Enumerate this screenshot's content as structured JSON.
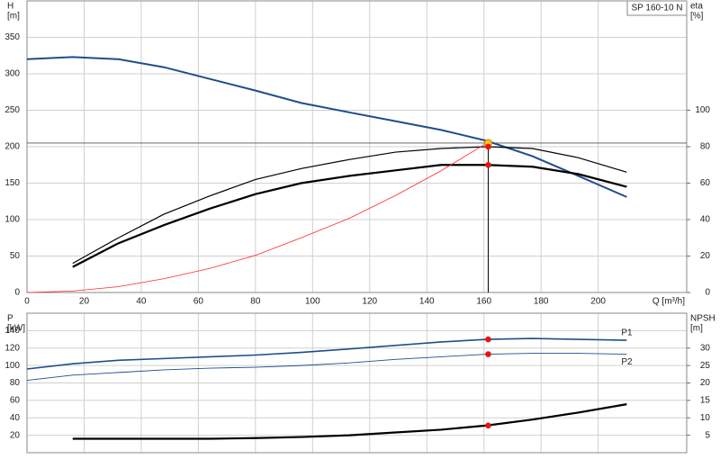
{
  "chart_data": [
    {
      "type": "line",
      "label": "SP 160-10 N",
      "ylabel": "H",
      "yunit": "[m]",
      "y2label": "eta",
      "y2unit": "[%]",
      "xlabel": "Q [m³/h]",
      "x": [
        0,
        16,
        32,
        48,
        64,
        80,
        96,
        113,
        129,
        145,
        161,
        177,
        193,
        210
      ],
      "xlim": [
        0,
        231
      ],
      "xticks": [
        0,
        20,
        40,
        60,
        80,
        100,
        120,
        140,
        160,
        180,
        200
      ],
      "ylim": [
        0,
        400
      ],
      "yticks": [
        0,
        50,
        100,
        150,
        200,
        250,
        300,
        350
      ],
      "y2lim": [
        0,
        160
      ],
      "y2ticks": [
        0,
        20,
        40,
        60,
        80,
        100
      ],
      "grid": true,
      "series": [
        {
          "color": "#1f4e8c",
          "width": 2,
          "axis": "y",
          "values": [
            320,
            323,
            320,
            309,
            293,
            277,
            260,
            247,
            235,
            223,
            208,
            187,
            160,
            131
          ]
        },
        {
          "color": "#000000",
          "width": 1.2,
          "axis": "y2",
          "values": [
            null,
            16,
            30,
            43,
            53,
            62,
            68,
            73,
            77,
            79,
            80,
            79,
            74,
            66
          ]
        },
        {
          "color": "#000000",
          "width": 2.2,
          "axis": "y2",
          "values": [
            null,
            14,
            27,
            37,
            46,
            54,
            60,
            64,
            67,
            70,
            70,
            69,
            65,
            58
          ]
        },
        {
          "color": "#ff2a2a",
          "width": 0.8,
          "axis": "y",
          "values": [
            0,
            2,
            8,
            19,
            33,
            51,
            75,
            102,
            133,
            167,
            205,
            null,
            null,
            null
          ]
        }
      ],
      "points": [
        {
          "x": 161.5,
          "y": 205,
          "axis": "y",
          "color": "#f5c518"
        },
        {
          "x": 161.5,
          "y": 80,
          "axis": "y2",
          "color": "#ee1111"
        },
        {
          "x": 161.5,
          "y": 70,
          "axis": "y2",
          "color": "#ee1111"
        }
      ]
    },
    {
      "type": "line",
      "ylabel": "P",
      "yunit": "[kW]",
      "y2label": "NPSH",
      "y2unit": "[m]",
      "x": [
        0,
        16,
        32,
        48,
        64,
        80,
        96,
        113,
        129,
        145,
        161,
        177,
        193,
        210
      ],
      "xlim": [
        0,
        231
      ],
      "ylim": [
        0,
        160
      ],
      "yticks": [
        20,
        40,
        60,
        80,
        100,
        120,
        140
      ],
      "y2lim": [
        0,
        40
      ],
      "y2ticks": [
        5,
        10,
        15,
        20,
        25,
        30
      ],
      "grid": true,
      "series": [
        {
          "name": "P1",
          "color": "#1f4e8c",
          "width": 1.6,
          "axis": "y",
          "values": [
            96,
            102,
            106,
            108,
            110,
            112,
            115,
            119,
            123,
            127,
            130,
            131,
            130,
            129
          ]
        },
        {
          "name": "P2",
          "color": "#1f4e8c",
          "width": 0.9,
          "axis": "y",
          "values": [
            83,
            89,
            92,
            95,
            97,
            98,
            100,
            103,
            107,
            110,
            113,
            114,
            114,
            113
          ]
        },
        {
          "color": "#000000",
          "width": 2.2,
          "axis": "y2",
          "values": [
            null,
            4,
            4,
            4,
            4,
            4.2,
            4.5,
            5,
            5.8,
            6.6,
            7.8,
            9.5,
            11.5,
            13.9
          ]
        }
      ],
      "points": [
        {
          "x": 161.5,
          "y": 130,
          "axis": "y",
          "color": "#ee1111"
        },
        {
          "x": 161.5,
          "y": 113,
          "axis": "y",
          "color": "#ee1111"
        },
        {
          "x": 161.5,
          "y": 7.8,
          "axis": "y2",
          "color": "#ee1111"
        }
      ]
    }
  ]
}
